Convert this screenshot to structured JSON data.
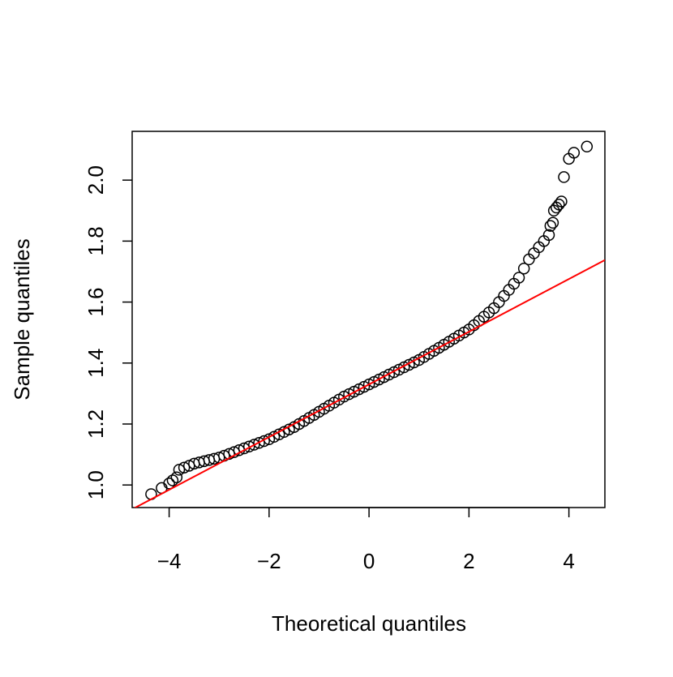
{
  "chart_data": {
    "type": "scatter",
    "x_label": "Theoretical quantiles",
    "y_label": "Sample quantiles",
    "x": [
      -4.36,
      -4.15,
      -4.0,
      -3.93,
      -3.85,
      -3.8,
      -3.7,
      -3.6,
      -3.5,
      -3.4,
      -3.3,
      -3.2,
      -3.1,
      -3.0,
      -2.9,
      -2.8,
      -2.7,
      -2.6,
      -2.5,
      -2.4,
      -2.3,
      -2.2,
      -2.1,
      -2.0,
      -1.9,
      -1.8,
      -1.7,
      -1.6,
      -1.5,
      -1.4,
      -1.3,
      -1.2,
      -1.1,
      -1.0,
      -0.9,
      -0.8,
      -0.7,
      -0.6,
      -0.5,
      -0.4,
      -0.3,
      -0.2,
      -0.1,
      0,
      0.1,
      0.2,
      0.3,
      0.4,
      0.5,
      0.6,
      0.7,
      0.8,
      0.9,
      1.0,
      1.1,
      1.2,
      1.3,
      1.4,
      1.5,
      1.6,
      1.7,
      1.8,
      1.9,
      2.0,
      2.1,
      2.2,
      2.3,
      2.4,
      2.5,
      2.6,
      2.7,
      2.8,
      2.9,
      3.0,
      3.1,
      3.2,
      3.3,
      3.4,
      3.5,
      3.6,
      3.63,
      3.68,
      3.7,
      3.75,
      3.8,
      3.85,
      3.9,
      4.0,
      4.1,
      4.36
    ],
    "values": [
      0.97,
      0.99,
      1.005,
      1.015,
      1.025,
      1.05,
      1.057,
      1.063,
      1.07,
      1.074,
      1.078,
      1.082,
      1.086,
      1.09,
      1.096,
      1.102,
      1.108,
      1.114,
      1.12,
      1.126,
      1.132,
      1.138,
      1.144,
      1.15,
      1.158,
      1.166,
      1.174,
      1.182,
      1.19,
      1.2,
      1.21,
      1.22,
      1.23,
      1.24,
      1.25,
      1.26,
      1.27,
      1.28,
      1.29,
      1.298,
      1.306,
      1.314,
      1.322,
      1.33,
      1.338,
      1.346,
      1.354,
      1.362,
      1.37,
      1.378,
      1.386,
      1.394,
      1.402,
      1.41,
      1.42,
      1.43,
      1.44,
      1.45,
      1.46,
      1.47,
      1.48,
      1.49,
      1.5,
      1.51,
      1.524,
      1.538,
      1.552,
      1.566,
      1.58,
      1.6,
      1.62,
      1.64,
      1.66,
      1.68,
      1.71,
      1.74,
      1.76,
      1.78,
      1.8,
      1.82,
      1.85,
      1.86,
      1.9,
      1.91,
      1.92,
      1.93,
      2.01,
      2.07,
      2.09,
      2.11
    ],
    "color": "#000000",
    "reference_line": {
      "intercept": 1.33,
      "slope": 0.0864,
      "color": "#ff0000"
    },
    "xlim": [
      -4.74,
      4.72
    ],
    "ylim": [
      0.926,
      2.16
    ],
    "xticks": [
      {
        "value": -4,
        "label": "−4"
      },
      {
        "value": -2,
        "label": "−2"
      },
      0,
      2,
      4
    ],
    "yticks": [
      {
        "value": 1.0,
        "label": "1.0"
      },
      1.2,
      1.4,
      1.6,
      1.8,
      {
        "value": 2.0,
        "label": "2.0"
      }
    ],
    "grid": false
  }
}
